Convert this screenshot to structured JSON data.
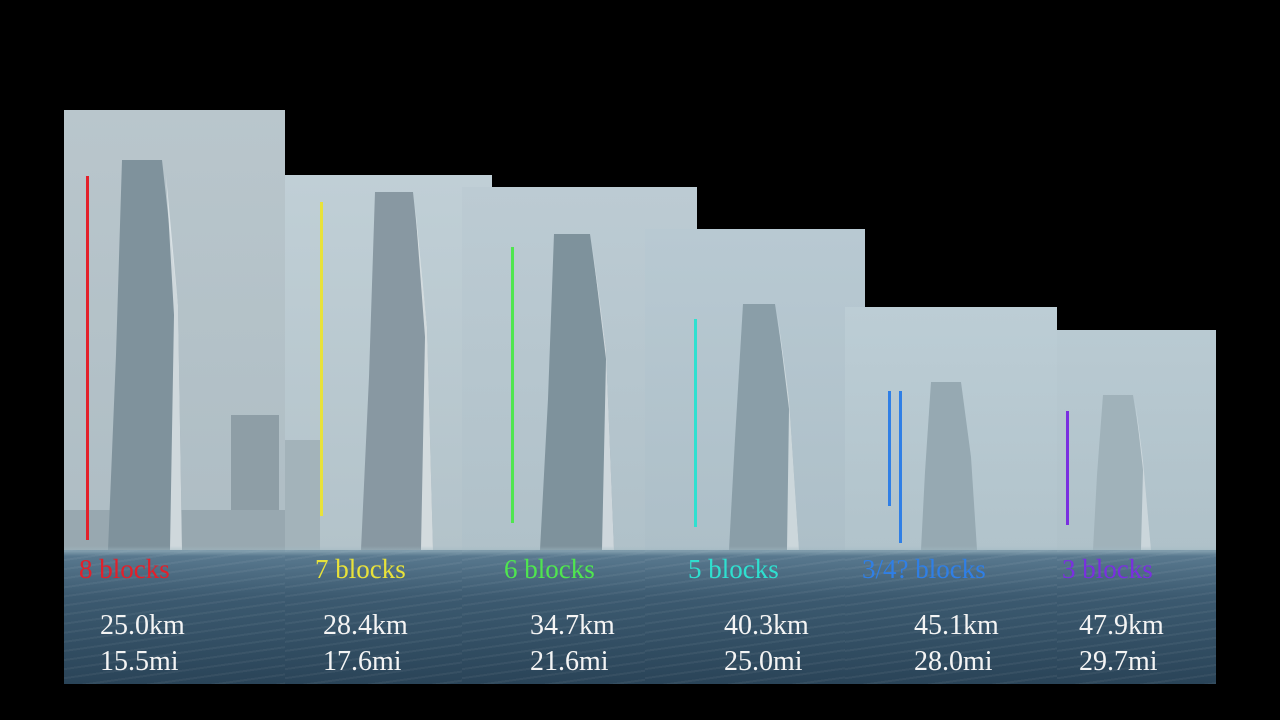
{
  "panels": [
    {
      "blocks": "8 blocks",
      "km": "25.0km",
      "mi": "15.5mi",
      "color": "#e3202a",
      "sky": "#b7c5cb"
    },
    {
      "blocks": "7 blocks",
      "km": "28.4km",
      "mi": "17.6mi",
      "color": "#e8e23a",
      "sky": "#bccbd3"
    },
    {
      "blocks": "6 blocks",
      "km": "34.7km",
      "mi": "21.6mi",
      "color": "#4fe64f",
      "sky": "#b9cad3"
    },
    {
      "blocks": "5 blocks",
      "km": "40.3km",
      "mi": "25.0mi",
      "color": "#2fe0d0",
      "sky": "#b4c6d0"
    },
    {
      "blocks": "3/4? blocks",
      "km": "45.1km",
      "mi": "28.0mi",
      "color": "#2f7fe6",
      "sky": "#b8c9d2"
    },
    {
      "blocks": "3 blocks",
      "km": "47.9km",
      "mi": "29.7mi",
      "color": "#7a2fe0",
      "sky": "#b5c6cf"
    }
  ]
}
